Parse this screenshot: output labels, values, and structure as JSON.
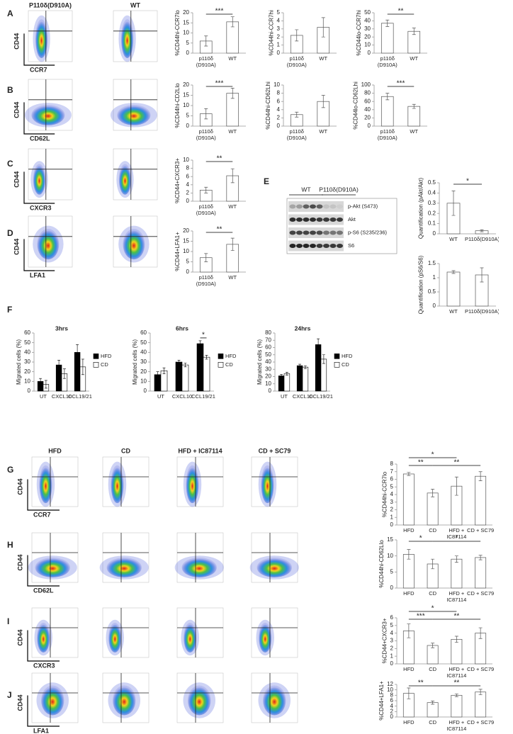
{
  "panel_letters": [
    "A",
    "B",
    "C",
    "D",
    "E",
    "F",
    "G",
    "H",
    "I",
    "J"
  ],
  "flow_groups": [
    {
      "columns": [
        "P110δ(D910A)",
        "WT"
      ],
      "rows": [
        {
          "y_label": "CD44",
          "x_label": "CCR7"
        },
        {
          "y_label": "CD44",
          "x_label": "CD62L"
        },
        {
          "y_label": "CD44",
          "x_label": "CXCR3"
        },
        {
          "y_label": "CD44",
          "x_label": "LFA1"
        }
      ]
    },
    {
      "columns": [
        "HFD",
        "CD",
        "HFD + IC87114",
        "CD + SC79"
      ],
      "rows": [
        {
          "y_label": "CD44",
          "x_label": "CCR7"
        },
        {
          "y_label": "CD44",
          "x_label": "CD62L"
        },
        {
          "y_label": "CD44",
          "x_label": "CXCR3"
        },
        {
          "y_label": "CD44",
          "x_label": "LFA1"
        }
      ]
    }
  ],
  "blot": {
    "groups": [
      "WT",
      "P110δ(D910A)"
    ],
    "bands": [
      "p-Akt (S473)",
      "Akt",
      "p-S6 (S235/236)",
      "S6"
    ]
  },
  "chart_data": [
    {
      "type": "bar",
      "y_label": "%CD44hi-CCR7lo",
      "categories": [
        "p110δ (D910A)",
        "WT"
      ],
      "values": [
        6,
        15.5
      ],
      "errors": [
        2.5,
        2.5
      ],
      "ylim": [
        0,
        20
      ],
      "yticks": [
        0,
        5,
        10,
        15,
        20
      ],
      "significance": [
        {
          "between": [
            "p110δ (D910A)",
            "WT"
          ],
          "label": "***"
        }
      ]
    },
    {
      "type": "bar",
      "y_label": "%CD44hi-CCR7hi",
      "categories": [
        "p110δ (D910A)",
        "WT"
      ],
      "values": [
        2.2,
        3.2
      ],
      "errors": [
        0.7,
        1.2
      ],
      "ylim": [
        0,
        5
      ],
      "yticks": [
        0,
        1,
        2,
        3,
        4,
        5
      ]
    },
    {
      "type": "bar",
      "y_label": "%CD44lo-CCR7hi",
      "categories": [
        "p110δ (D910A)",
        "WT"
      ],
      "values": [
        37,
        27
      ],
      "errors": [
        4,
        4
      ],
      "ylim": [
        0,
        50
      ],
      "yticks": [
        0,
        10,
        20,
        30,
        40,
        50
      ],
      "significance": [
        {
          "between": [
            "p110δ (D910A)",
            "WT"
          ],
          "label": "**"
        }
      ]
    },
    {
      "type": "bar",
      "y_label": "%CD44hi-CD2Llo",
      "categories": [
        "p110δ (D910A)",
        "WT"
      ],
      "values": [
        6,
        16
      ],
      "errors": [
        2.5,
        2.5
      ],
      "ylim": [
        0,
        20
      ],
      "yticks": [
        0,
        5,
        10,
        15,
        20
      ],
      "significance": [
        {
          "between": [
            "p110δ (D910A)",
            "WT"
          ],
          "label": "***"
        }
      ]
    },
    {
      "type": "bar",
      "y_label": "%CD44hi-CD62Lhi",
      "categories": [
        "p110δ (D910A)",
        "WT"
      ],
      "values": [
        2.8,
        6
      ],
      "errors": [
        0.6,
        1.5
      ],
      "ylim": [
        0,
        10
      ],
      "yticks": [
        0,
        2,
        4,
        6,
        8,
        10
      ]
    },
    {
      "type": "bar",
      "y_label": "%CD44lo-CD62Lhi",
      "categories": [
        "p110δ (D910A)",
        "WT"
      ],
      "values": [
        72,
        48
      ],
      "errors": [
        8,
        5
      ],
      "ylim": [
        0,
        100
      ],
      "yticks": [
        0,
        20,
        40,
        60,
        80,
        100
      ],
      "significance": [
        {
          "between": [
            "p110δ (D910A)",
            "WT"
          ],
          "label": "***"
        }
      ]
    },
    {
      "type": "bar",
      "y_label": "%CD44+CXCR3+",
      "categories": [
        "p110δ (D910A)",
        "WT"
      ],
      "values": [
        2.7,
        6.2
      ],
      "errors": [
        0.7,
        1.7
      ],
      "ylim": [
        0,
        10
      ],
      "yticks": [
        0,
        2,
        4,
        6,
        8,
        10
      ],
      "significance": [
        {
          "between": [
            "p110δ (D910A)",
            "WT"
          ],
          "label": "**"
        }
      ]
    },
    {
      "type": "bar",
      "y_label": "%CD44+LFA1+",
      "categories": [
        "p110δ (D910A)",
        "WT"
      ],
      "values": [
        7,
        13.5
      ],
      "errors": [
        2,
        3
      ],
      "ylim": [
        0,
        20
      ],
      "yticks": [
        0,
        5,
        10,
        15,
        20
      ],
      "significance": [
        {
          "between": [
            "p110δ (D910A)",
            "WT"
          ],
          "label": "**"
        }
      ]
    },
    {
      "type": "bar",
      "y_label": "Quantification (pAkt/Akt)",
      "categories": [
        "WT",
        "P110δ(D910A)"
      ],
      "values": [
        0.3,
        0.03
      ],
      "errors": [
        0.12,
        0.01
      ],
      "ylim": [
        0,
        0.5
      ],
      "yticks": [
        0,
        0.1,
        0.2,
        0.3,
        0.4,
        0.5
      ],
      "significance": [
        {
          "between": [
            "WT",
            "P110δ(D910A)"
          ],
          "label": "*"
        }
      ]
    },
    {
      "type": "bar",
      "y_label": "Quantification (pS6/S6)",
      "categories": [
        "WT",
        "P110δ(D910A)"
      ],
      "values": [
        1.2,
        1.1
      ],
      "errors": [
        0.05,
        0.25
      ],
      "ylim": [
        0,
        1.5
      ],
      "yticks": [
        0,
        0.5,
        1,
        1.5
      ]
    },
    {
      "type": "bar",
      "title": "3hrs",
      "y_label": "Migrated cells (%)",
      "categories": [
        "UT",
        "CXCL10",
        "CCL19/21"
      ],
      "series": [
        {
          "name": "HFD",
          "color": "#000000",
          "values": [
            10,
            27,
            40
          ],
          "errors": [
            3,
            5,
            8
          ]
        },
        {
          "name": "CD",
          "color": "#ffffff",
          "values": [
            7,
            18,
            25
          ],
          "errors": [
            4,
            5,
            8
          ]
        }
      ],
      "ylim": [
        0,
        60
      ],
      "yticks": [
        0,
        10,
        20,
        30,
        40,
        50,
        60
      ]
    },
    {
      "type": "bar",
      "title": "6hrs",
      "y_label": "Migrated cells (%)",
      "categories": [
        "UT",
        "CXCL10",
        "CCL19/21"
      ],
      "series": [
        {
          "name": "HFD",
          "color": "#000000",
          "values": [
            17,
            30,
            49
          ],
          "errors": [
            3,
            2,
            3
          ]
        },
        {
          "name": "CD",
          "color": "#ffffff",
          "values": [
            21,
            27,
            35
          ],
          "errors": [
            3,
            2,
            2
          ]
        }
      ],
      "ylim": [
        0,
        60
      ],
      "yticks": [
        0,
        10,
        20,
        30,
        40,
        50,
        60
      ],
      "significance": [
        {
          "category": "CCL19/21",
          "label": "*"
        }
      ]
    },
    {
      "type": "bar",
      "title": "24hrs",
      "y_label": "Migrated cells (%)",
      "categories": [
        "UT",
        "CXCL10",
        "CCL19/21"
      ],
      "series": [
        {
          "name": "HFD",
          "color": "#000000",
          "values": [
            21,
            35,
            64
          ],
          "errors": [
            2,
            2,
            8
          ]
        },
        {
          "name": "CD",
          "color": "#ffffff",
          "values": [
            24,
            33,
            44
          ],
          "errors": [
            2,
            2,
            6
          ]
        }
      ],
      "ylim": [
        0,
        80
      ],
      "yticks": [
        0,
        10,
        20,
        30,
        40,
        50,
        60,
        70,
        80
      ]
    },
    {
      "type": "bar",
      "y_label": "%CD44hi-CCR7lo",
      "categories": [
        "HFD",
        "CD",
        "HFD + IC87114",
        "CD + SC79"
      ],
      "values": [
        6.7,
        4.2,
        5.1,
        6.4
      ],
      "errors": [
        0.2,
        0.5,
        1.2,
        0.6
      ],
      "ylim": [
        0,
        8
      ],
      "yticks": [
        0,
        1,
        2,
        3,
        4,
        5,
        6,
        7,
        8
      ],
      "significance": [
        {
          "between": [
            "HFD",
            "CD"
          ],
          "label": "**"
        },
        {
          "between": [
            "CD",
            "CD + SC79"
          ],
          "label": "**"
        },
        {
          "between": [
            "HFD",
            "HFD + IC87114"
          ],
          "label": "*"
        }
      ]
    },
    {
      "type": "bar",
      "y_label": "%CD44hi-CD62Llo",
      "categories": [
        "HFD",
        "CD",
        "HFD + IC87114",
        "CD + SC79"
      ],
      "values": [
        10.5,
        7.5,
        9,
        9.5
      ],
      "errors": [
        1.5,
        1.5,
        1,
        0.7
      ],
      "ylim": [
        0,
        15
      ],
      "yticks": [
        0,
        5,
        10,
        15
      ],
      "significance": [
        {
          "between": [
            "HFD",
            "CD"
          ],
          "label": "*"
        },
        {
          "between": [
            "CD",
            "CD + SC79"
          ],
          "label": "*"
        }
      ]
    },
    {
      "type": "bar",
      "y_label": "%CD44+CXCR3+",
      "categories": [
        "HFD",
        "CD",
        "HFD + IC87114",
        "CD + SC79"
      ],
      "values": [
        4.3,
        2.4,
        3.2,
        4
      ],
      "errors": [
        0.9,
        0.3,
        0.4,
        0.7
      ],
      "ylim": [
        0,
        6
      ],
      "yticks": [
        0,
        1,
        2,
        3,
        4,
        5,
        6
      ],
      "significance": [
        {
          "between": [
            "HFD",
            "CD"
          ],
          "label": "***"
        },
        {
          "between": [
            "CD",
            "CD + SC79"
          ],
          "label": "**"
        },
        {
          "between": [
            "HFD",
            "HFD + IC87114"
          ],
          "label": "*"
        }
      ]
    },
    {
      "type": "bar",
      "y_label": "%CD44+LFA1+",
      "categories": [
        "HFD",
        "CD",
        "HFD + IC87114",
        "CD + SC79"
      ],
      "values": [
        8.7,
        5.3,
        8,
        9.2
      ],
      "errors": [
        2,
        0.6,
        0.5,
        1
      ],
      "ylim": [
        0,
        12
      ],
      "yticks": [
        0,
        2,
        4,
        6,
        8,
        10,
        12
      ],
      "significance": [
        {
          "between": [
            "HFD",
            "CD"
          ],
          "label": "**"
        },
        {
          "between": [
            "CD",
            "CD + SC79"
          ],
          "label": "**"
        }
      ]
    }
  ]
}
